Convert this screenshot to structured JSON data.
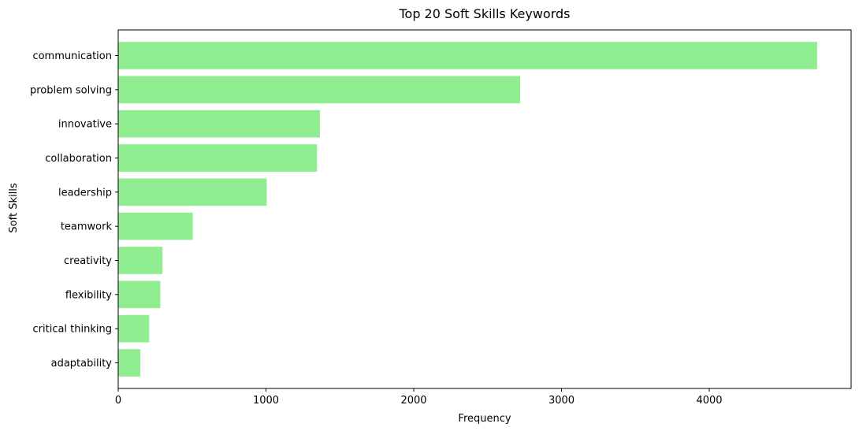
{
  "chart_data": {
    "type": "bar",
    "orientation": "horizontal",
    "title": "Top 20 Soft Skills Keywords",
    "xlabel": "Frequency",
    "ylabel": "Soft Skills",
    "categories": [
      "communication",
      "problem solving",
      "innovative",
      "collaboration",
      "leadership",
      "teamwork",
      "creativity",
      "flexibility",
      "critical thinking",
      "adaptability"
    ],
    "values": [
      4730,
      2720,
      1365,
      1345,
      1005,
      505,
      300,
      285,
      210,
      150
    ],
    "xlim": [
      0,
      4960
    ],
    "xticks": [
      0,
      1000,
      2000,
      3000,
      4000
    ],
    "grid": false,
    "bar_color": "#90EE90"
  }
}
